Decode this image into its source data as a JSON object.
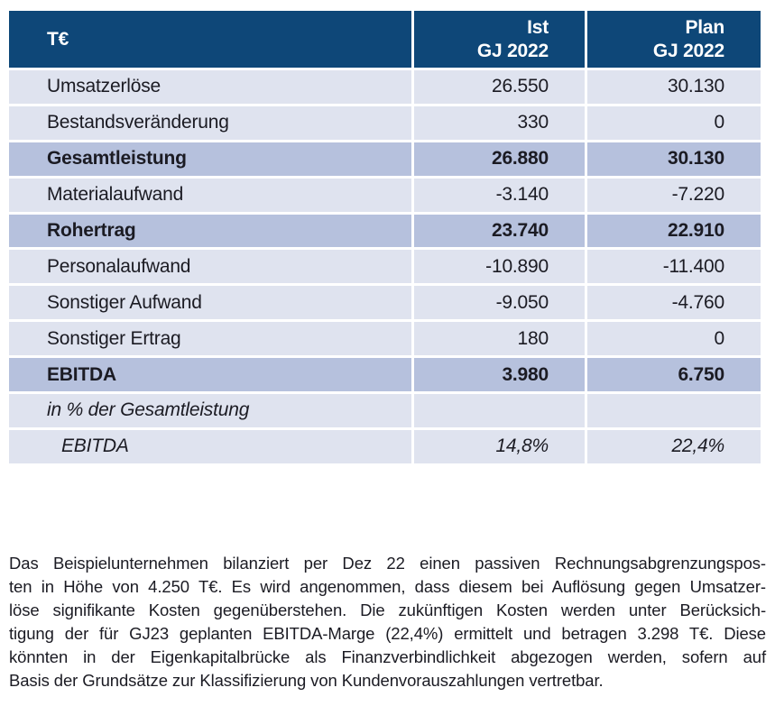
{
  "colors": {
    "header_bg": "#0e4778",
    "header_text": "#ffffff",
    "row_bg": "#dfe3ef",
    "total_row_bg": "#b6c1dd",
    "text": "#1b1b23"
  },
  "table": {
    "unit_header": "T€",
    "col_ist": {
      "line1": "Ist",
      "line2": "GJ 2022"
    },
    "col_plan": {
      "line1": "Plan",
      "line2": "GJ 2022"
    },
    "rows": [
      {
        "label": "Umsatzerlöse",
        "ist": "26.550",
        "plan": "30.130",
        "style": "normal"
      },
      {
        "label": "Bestandsveränderung",
        "ist": "330",
        "plan": "0",
        "style": "normal"
      },
      {
        "label": "Gesamtleistung",
        "ist": "26.880",
        "plan": "30.130",
        "style": "total"
      },
      {
        "label": "Materialaufwand",
        "ist": "-3.140",
        "plan": "-7.220",
        "style": "normal"
      },
      {
        "label": "Rohertrag",
        "ist": "23.740",
        "plan": "22.910",
        "style": "total"
      },
      {
        "label": "Personalaufwand",
        "ist": "-10.890",
        "plan": "-11.400",
        "style": "normal"
      },
      {
        "label": "Sonstiger Aufwand",
        "ist": "-9.050",
        "plan": "-4.760",
        "style": "normal"
      },
      {
        "label": "Sonstiger Ertrag",
        "ist": "180",
        "plan": "0",
        "style": "normal"
      },
      {
        "label": "EBITDA",
        "ist": "3.980",
        "plan": "6.750",
        "style": "total"
      },
      {
        "label": "in % der Gesamtleistung",
        "ist": "",
        "plan": "",
        "style": "section"
      },
      {
        "label": "EBITDA",
        "ist": "14,8%",
        "plan": "22,4%",
        "style": "sub"
      }
    ]
  },
  "footnote": {
    "lines": [
      "Das Beispielunternehmen bilanziert per Dez 22 einen passiven Rechnungsabgrenzungspos-",
      "ten in Höhe von 4.250 T€. Es wird angenommen, dass diesem bei Auflösung gegen Umsatzer-",
      "löse signifikante Kosten gegenüberstehen. Die zukünftigen Kosten werden unter Berücksich-",
      "tigung der für GJ23 geplanten EBITDA-Marge (22,4%) ermittelt und betragen 3.298 T€. Diese",
      "könnten in der Eigenkapitalbrücke als Finanzverbindlichkeit abgezogen werden, sofern auf",
      "Basis der Grundsätze zur Klassifizierung von Kundenvorauszahlungen vertretbar."
    ]
  }
}
